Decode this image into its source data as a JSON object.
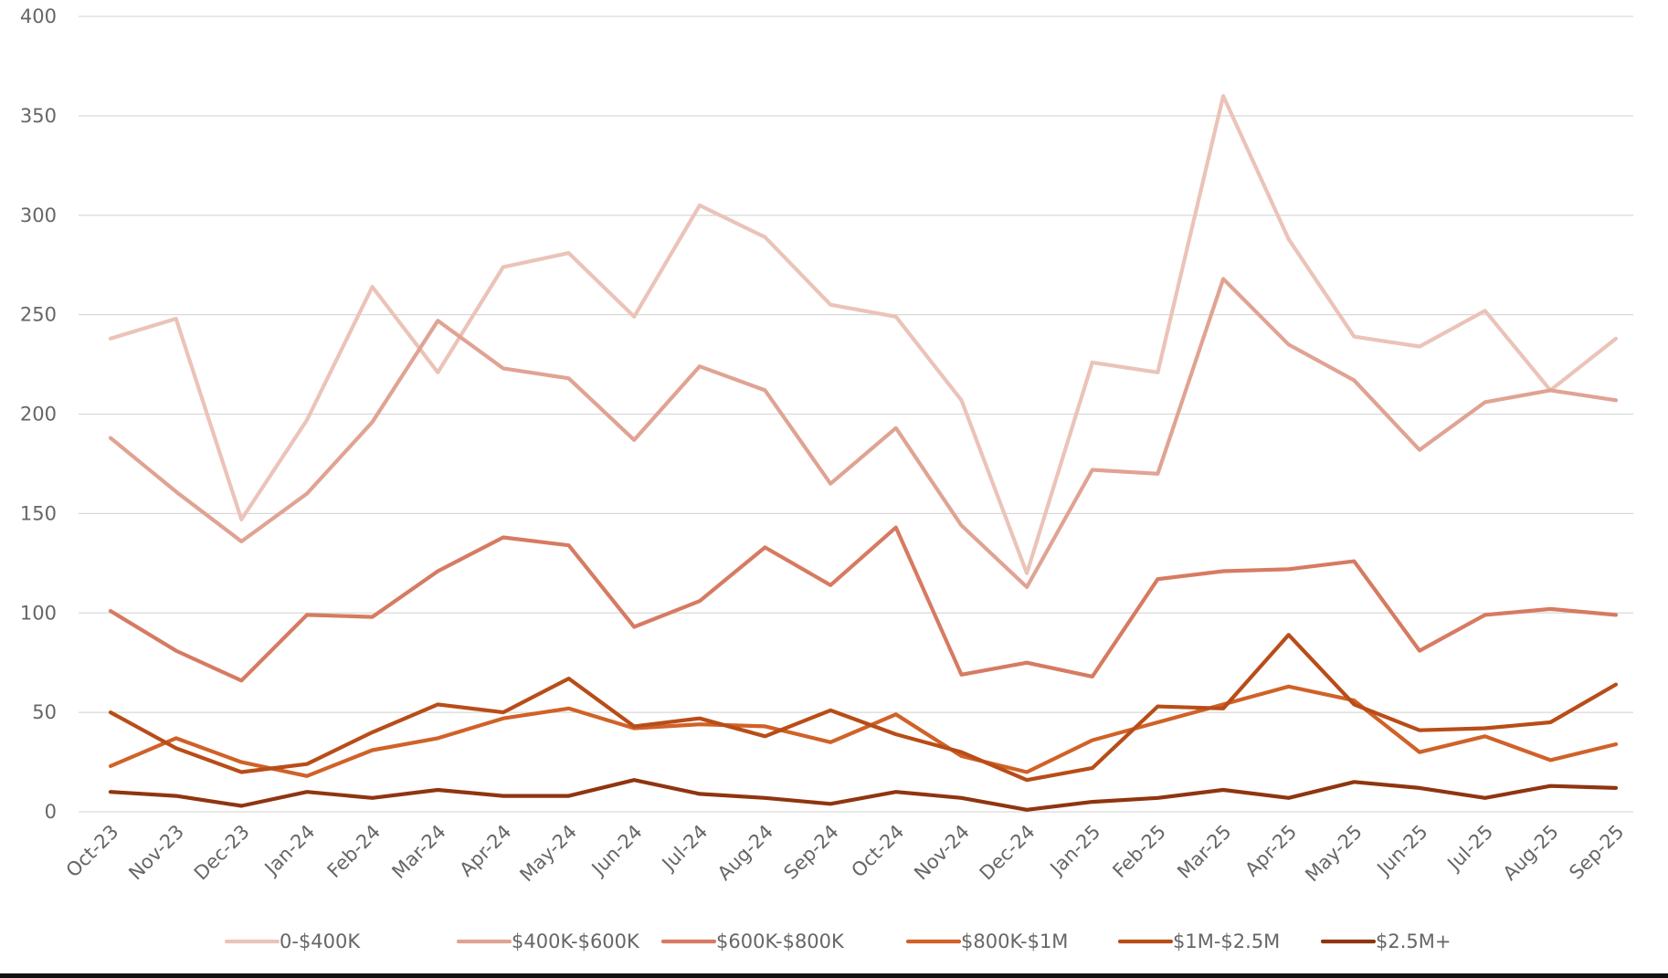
{
  "chart_data": {
    "type": "line",
    "title": "",
    "xlabel": "",
    "ylabel": "",
    "ylim": [
      0,
      400
    ],
    "yticks": [
      "0",
      "50",
      "100",
      "150",
      "200",
      "250",
      "300",
      "350",
      "400"
    ],
    "grid": true,
    "legend_position": "bottom",
    "categories": [
      "Oct-23",
      "Nov-23",
      "Dec-23",
      "Jan-24",
      "Feb-24",
      "Mar-24",
      "Apr-24",
      "May-24",
      "Jun-24",
      "Jul-24",
      "Aug-24",
      "Sep-24",
      "Oct-24",
      "Nov-24",
      "Dec-24",
      "Jan-25",
      "Feb-25",
      "Mar-25",
      "Apr-25",
      "May-25",
      "Jun-25",
      "Jul-25",
      "Aug-25",
      "Sep-25"
    ],
    "series": [
      {
        "name": "0-$400K",
        "color": "#ebc3b8",
        "values": [
          238,
          248,
          147,
          197,
          264,
          221,
          274,
          281,
          249,
          305,
          289,
          255,
          249,
          207,
          120,
          226,
          221,
          360,
          288,
          239,
          234,
          252,
          212,
          238
        ]
      },
      {
        "name": "$400K-$600K",
        "color": "#e0a393",
        "values": [
          188,
          161,
          136,
          160,
          196,
          247,
          223,
          218,
          187,
          224,
          212,
          165,
          193,
          144,
          113,
          172,
          170,
          268,
          235,
          217,
          182,
          206,
          212,
          207
        ]
      },
      {
        "name": "$600K-$800K",
        "color": "#d67b62",
        "values": [
          101,
          81,
          66,
          99,
          98,
          121,
          138,
          134,
          93,
          106,
          133,
          114,
          143,
          69,
          75,
          68,
          117,
          121,
          122,
          126,
          81,
          99,
          102,
          99
        ]
      },
      {
        "name": "$800K-$1M",
        "color": "#d06228",
        "values": [
          23,
          37,
          25,
          18,
          31,
          37,
          47,
          52,
          42,
          44,
          43,
          35,
          49,
          28,
          20,
          36,
          45,
          54,
          63,
          56,
          30,
          38,
          26,
          34
        ]
      },
      {
        "name": "$1M-$2.5M",
        "color": "#b84d18",
        "values": [
          50,
          32,
          20,
          24,
          40,
          54,
          50,
          67,
          43,
          47,
          38,
          51,
          39,
          30,
          16,
          22,
          53,
          52,
          89,
          54,
          41,
          42,
          45,
          64
        ]
      },
      {
        "name": "$2.5M+",
        "color": "#8f3510",
        "values": [
          10,
          8,
          3,
          10,
          7,
          11,
          8,
          8,
          16,
          9,
          7,
          4,
          10,
          7,
          1,
          5,
          7,
          11,
          7,
          15,
          12,
          7,
          13,
          12
        ]
      }
    ]
  }
}
